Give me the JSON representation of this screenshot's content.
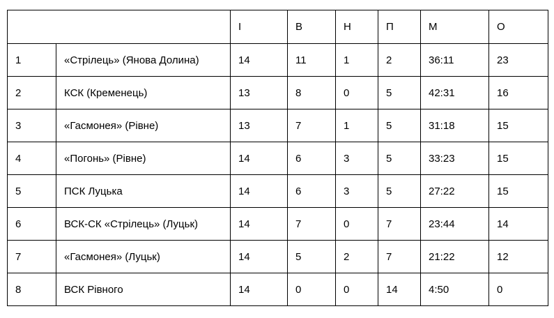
{
  "table": {
    "title_semantic": "football-standings-table",
    "headers": {
      "team": "",
      "games": "І",
      "wins": "В",
      "draws": "Н",
      "losses": "П",
      "goals": "М",
      "points": "О"
    },
    "rows": [
      [
        "1",
        "«Стрілець» (Янова Долина)",
        "14",
        "11",
        "1",
        "2",
        "36:11",
        "23"
      ],
      [
        "2",
        "КСК (Кременець)",
        "13",
        "8",
        "0",
        "5",
        "42:31",
        "16"
      ],
      [
        "3",
        "«Гасмонея» (Рівне)",
        "13",
        "7",
        "1",
        "5",
        "31:18",
        "15"
      ],
      [
        "4",
        "«Погонь» (Рівне)",
        "14",
        "6",
        "3",
        "5",
        "33:23",
        "15"
      ],
      [
        "5",
        "ПСК Луцька",
        "14",
        "6",
        "3",
        "5",
        "27:22",
        "15"
      ],
      [
        "6",
        "ВСК-СК «Стрілець» (Луцьк)",
        "14",
        "7",
        "0",
        "7",
        "23:44",
        "14"
      ],
      [
        "7",
        "«Гасмонея» (Луцьк)",
        "14",
        "5",
        "2",
        "7",
        "21:22",
        "12"
      ],
      [
        "8",
        "ВСК Рівного",
        "14",
        "0",
        "0",
        "14",
        "4:50",
        "0"
      ]
    ]
  },
  "colors": {
    "border": "#000000",
    "background": "#ffffff",
    "text": "#000000"
  }
}
